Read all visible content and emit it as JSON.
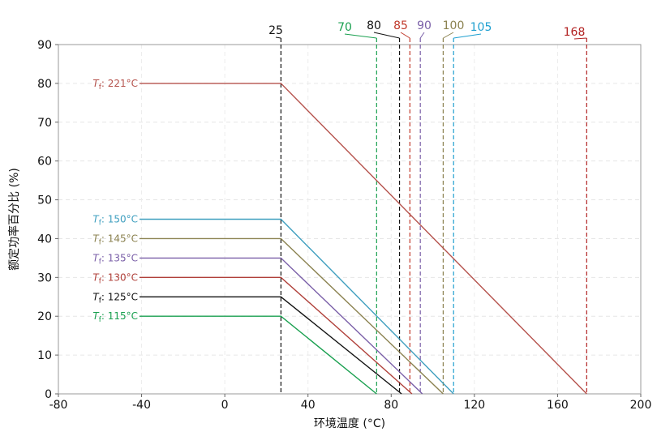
{
  "chart_data": {
    "type": "line",
    "xlabel": "环境温度 (°C)",
    "ylabel": "额定功率百分比 (%)",
    "xlim": [
      -80,
      200
    ],
    "ylim": [
      0,
      90
    ],
    "xticks": [
      -80,
      -40,
      0,
      40,
      80,
      120,
      160,
      200
    ],
    "yticks": [
      0,
      10,
      20,
      30,
      40,
      50,
      60,
      70,
      80,
      90
    ],
    "grid": true,
    "series": [
      {
        "name": "T_f: 221°C",
        "label_prefix": "T",
        "label_sub": "f",
        "label_value": ": 221°C",
        "color": "#b5524c",
        "points": [
          [
            -80,
            80
          ],
          [
            27,
            80
          ],
          [
            174,
            0
          ]
        ]
      },
      {
        "name": "T_f: 150°C",
        "label_prefix": "T",
        "label_sub": "f",
        "label_value": ": 150°C",
        "color": "#3f9fbf",
        "points": [
          [
            -80,
            45
          ],
          [
            27,
            45
          ],
          [
            110,
            0
          ]
        ]
      },
      {
        "name": "T_f: 145°C",
        "label_prefix": "T",
        "label_sub": "f",
        "label_value": ": 145°C",
        "color": "#8b8250",
        "points": [
          [
            -80,
            40
          ],
          [
            27,
            40
          ],
          [
            105,
            0
          ]
        ]
      },
      {
        "name": "T_f: 135°C",
        "label_prefix": "T",
        "label_sub": "f",
        "label_value": ": 135°C",
        "color": "#7a5fa8",
        "points": [
          [
            -80,
            35
          ],
          [
            27,
            35
          ],
          [
            95,
            0
          ]
        ]
      },
      {
        "name": "T_f: 130°C",
        "label_prefix": "T",
        "label_sub": "f",
        "label_value": ": 130°C",
        "color": "#b0403a",
        "points": [
          [
            -80,
            30
          ],
          [
            27,
            30
          ],
          [
            90,
            0
          ]
        ]
      },
      {
        "name": "T_f: 125°C",
        "label_prefix": "T",
        "label_sub": "f",
        "label_value": ": 125°C",
        "color": "#111111",
        "points": [
          [
            -80,
            25
          ],
          [
            27,
            25
          ],
          [
            85,
            0
          ]
        ]
      },
      {
        "name": "T_f: 115°C",
        "label_prefix": "T",
        "label_sub": "f",
        "label_value": ": 115°C",
        "color": "#1aa050",
        "points": [
          [
            -80,
            20
          ],
          [
            27,
            20
          ],
          [
            73,
            0
          ]
        ]
      }
    ],
    "vlines": [
      {
        "label": "25",
        "x": 27,
        "color": "#111111"
      },
      {
        "label": "70",
        "x": 73,
        "color": "#1aa050"
      },
      {
        "label": "80",
        "x": 84,
        "color": "#111111"
      },
      {
        "label": "85",
        "x": 89,
        "color": "#c0392b"
      },
      {
        "label": "90",
        "x": 94,
        "color": "#7a5fa8"
      },
      {
        "label": "100",
        "x": 105,
        "color": "#8b8250"
      },
      {
        "label": "105",
        "x": 110,
        "color": "#1e9fd0"
      },
      {
        "label": "168",
        "x": 174,
        "color": "#b22222"
      }
    ]
  }
}
